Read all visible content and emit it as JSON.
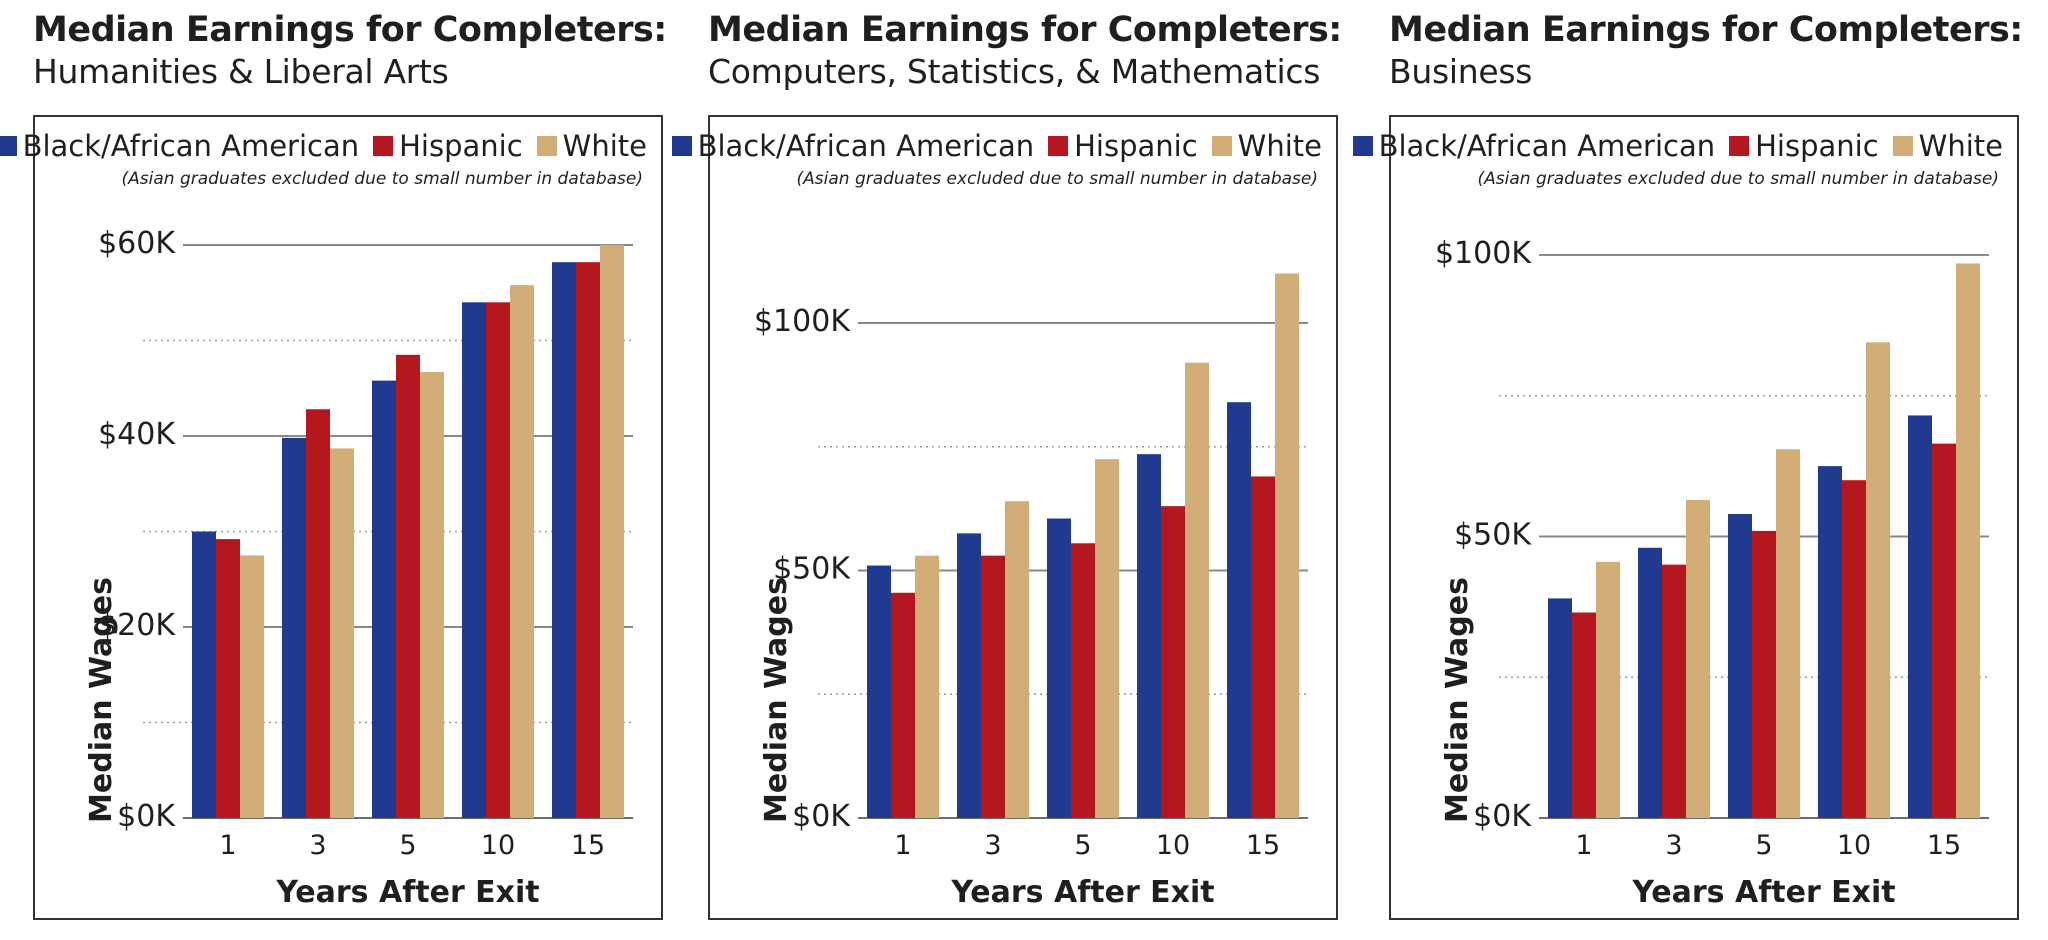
{
  "colors": {
    "black": "#1f3a8f",
    "hispanic": "#b5171f",
    "white": "#d2ad77"
  },
  "legend": {
    "black": "Black/African American",
    "hispanic": "Hispanic",
    "white": "White",
    "note": "(Asian graduates excluded due to small number in database)"
  },
  "chart_data": [
    {
      "type": "bar",
      "title": "Median Earnings for Completers:",
      "subtitle": "Humanities & Liberal Arts",
      "xlabel": "Years After Exit",
      "ylabel": "Median Wages",
      "categories": [
        "1",
        "3",
        "5",
        "10",
        "15"
      ],
      "ylim": [
        0,
        60000
      ],
      "yticks": [
        0,
        20000,
        40000,
        60000
      ],
      "ytick_labels": [
        "$0K",
        "$20K",
        "$40K",
        "$60K"
      ],
      "minor_gridlines": [
        10000,
        30000,
        50000
      ],
      "series": [
        {
          "name": "Black/African American",
          "values": [
            30000,
            39800,
            45800,
            54000,
            58200
          ]
        },
        {
          "name": "Hispanic",
          "values": [
            29200,
            42800,
            48500,
            54000,
            58200
          ]
        },
        {
          "name": "White",
          "values": [
            27500,
            38700,
            46700,
            55800,
            60000
          ]
        }
      ]
    },
    {
      "type": "bar",
      "title": "Median Earnings for Completers:",
      "subtitle": "Computers, Statistics, & Mathematics",
      "xlabel": "Years After Exit",
      "ylabel": "Median Wages",
      "categories": [
        "1",
        "3",
        "5",
        "10",
        "15"
      ],
      "ylim": [
        0,
        100000
      ],
      "yticks": [
        0,
        50000,
        100000
      ],
      "ytick_labels": [
        "$0K",
        "$50K",
        "$100K"
      ],
      "minor_gridlines": [
        25000,
        75000
      ],
      "series": [
        {
          "name": "Black/African American",
          "values": [
            51000,
            57500,
            60500,
            73500,
            84000
          ]
        },
        {
          "name": "Hispanic",
          "values": [
            45500,
            53000,
            55500,
            63000,
            69000
          ]
        },
        {
          "name": "White",
          "values": [
            53000,
            64000,
            72500,
            92000,
            110000
          ]
        }
      ]
    },
    {
      "type": "bar",
      "title": "Median Earnings for Completers:",
      "subtitle": "Business",
      "xlabel": "Years After Exit",
      "ylabel": "Median Wages",
      "categories": [
        "1",
        "3",
        "5",
        "10",
        "15"
      ],
      "ylim": [
        0,
        100000
      ],
      "yticks": [
        0,
        50000,
        100000
      ],
      "ytick_labels": [
        "$0K",
        "$50K",
        "$100K"
      ],
      "minor_gridlines": [
        25000,
        75000
      ],
      "series": [
        {
          "name": "Black/African American",
          "values": [
            39000,
            48000,
            54000,
            62500,
            71500
          ]
        },
        {
          "name": "Hispanic",
          "values": [
            36500,
            45000,
            51000,
            60000,
            66500
          ]
        },
        {
          "name": "White",
          "values": [
            45500,
            56500,
            65500,
            84500,
            98500
          ]
        }
      ]
    }
  ]
}
